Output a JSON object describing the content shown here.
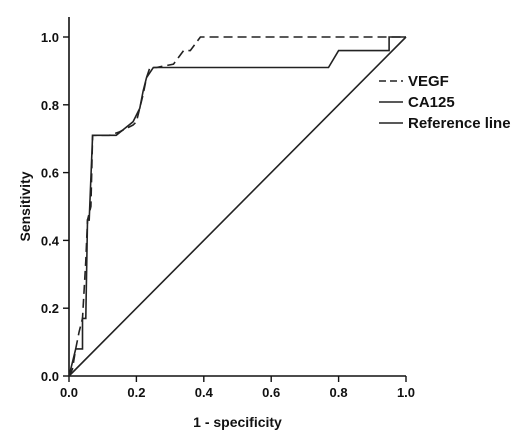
{
  "chart_data": {
    "type": "line",
    "title": "",
    "xlabel": "1 - specificity",
    "ylabel": "Sensitivity",
    "xlim": [
      0,
      1
    ],
    "ylim": [
      0,
      1
    ],
    "x_ticks": [
      "0.0",
      "0.2",
      "0.4",
      "0.6",
      "0.8",
      "1.0"
    ],
    "y_ticks": [
      "0.0",
      "0.2",
      "0.4",
      "0.6",
      "0.8",
      "1.0"
    ],
    "grid": false,
    "legend_position": "right",
    "series": [
      {
        "name": "VEGF",
        "style": "dashed",
        "color": "#222222",
        "points": [
          [
            0,
            0
          ],
          [
            0.01,
            0.02
          ],
          [
            0.02,
            0.08
          ],
          [
            0.03,
            0.13
          ],
          [
            0.04,
            0.17
          ],
          [
            0.05,
            0.34
          ],
          [
            0.055,
            0.46
          ],
          [
            0.065,
            0.5
          ],
          [
            0.07,
            0.71
          ],
          [
            0.12,
            0.71
          ],
          [
            0.15,
            0.72
          ],
          [
            0.19,
            0.74
          ],
          [
            0.2,
            0.75
          ],
          [
            0.22,
            0.83
          ],
          [
            0.23,
            0.88
          ],
          [
            0.24,
            0.91
          ],
          [
            0.26,
            0.91
          ],
          [
            0.31,
            0.92
          ],
          [
            0.34,
            0.96
          ],
          [
            0.36,
            0.96
          ],
          [
            0.39,
            1.0
          ],
          [
            1.0,
            1.0
          ]
        ]
      },
      {
        "name": "CA125",
        "style": "solid",
        "color": "#222222",
        "points": [
          [
            0,
            0
          ],
          [
            0.01,
            0.04
          ],
          [
            0.02,
            0.08
          ],
          [
            0.04,
            0.08
          ],
          [
            0.04,
            0.17
          ],
          [
            0.05,
            0.17
          ],
          [
            0.055,
            0.46
          ],
          [
            0.06,
            0.46
          ],
          [
            0.07,
            0.71
          ],
          [
            0.14,
            0.71
          ],
          [
            0.19,
            0.75
          ],
          [
            0.21,
            0.79
          ],
          [
            0.22,
            0.84
          ],
          [
            0.23,
            0.88
          ],
          [
            0.25,
            0.91
          ],
          [
            0.77,
            0.91
          ],
          [
            0.8,
            0.96
          ],
          [
            0.95,
            0.96
          ],
          [
            0.95,
            1.0
          ],
          [
            1.0,
            1.0
          ]
        ]
      },
      {
        "name": "Reference line",
        "style": "solid",
        "color": "#222222",
        "points": [
          [
            0,
            0
          ],
          [
            1,
            1
          ]
        ]
      }
    ]
  }
}
